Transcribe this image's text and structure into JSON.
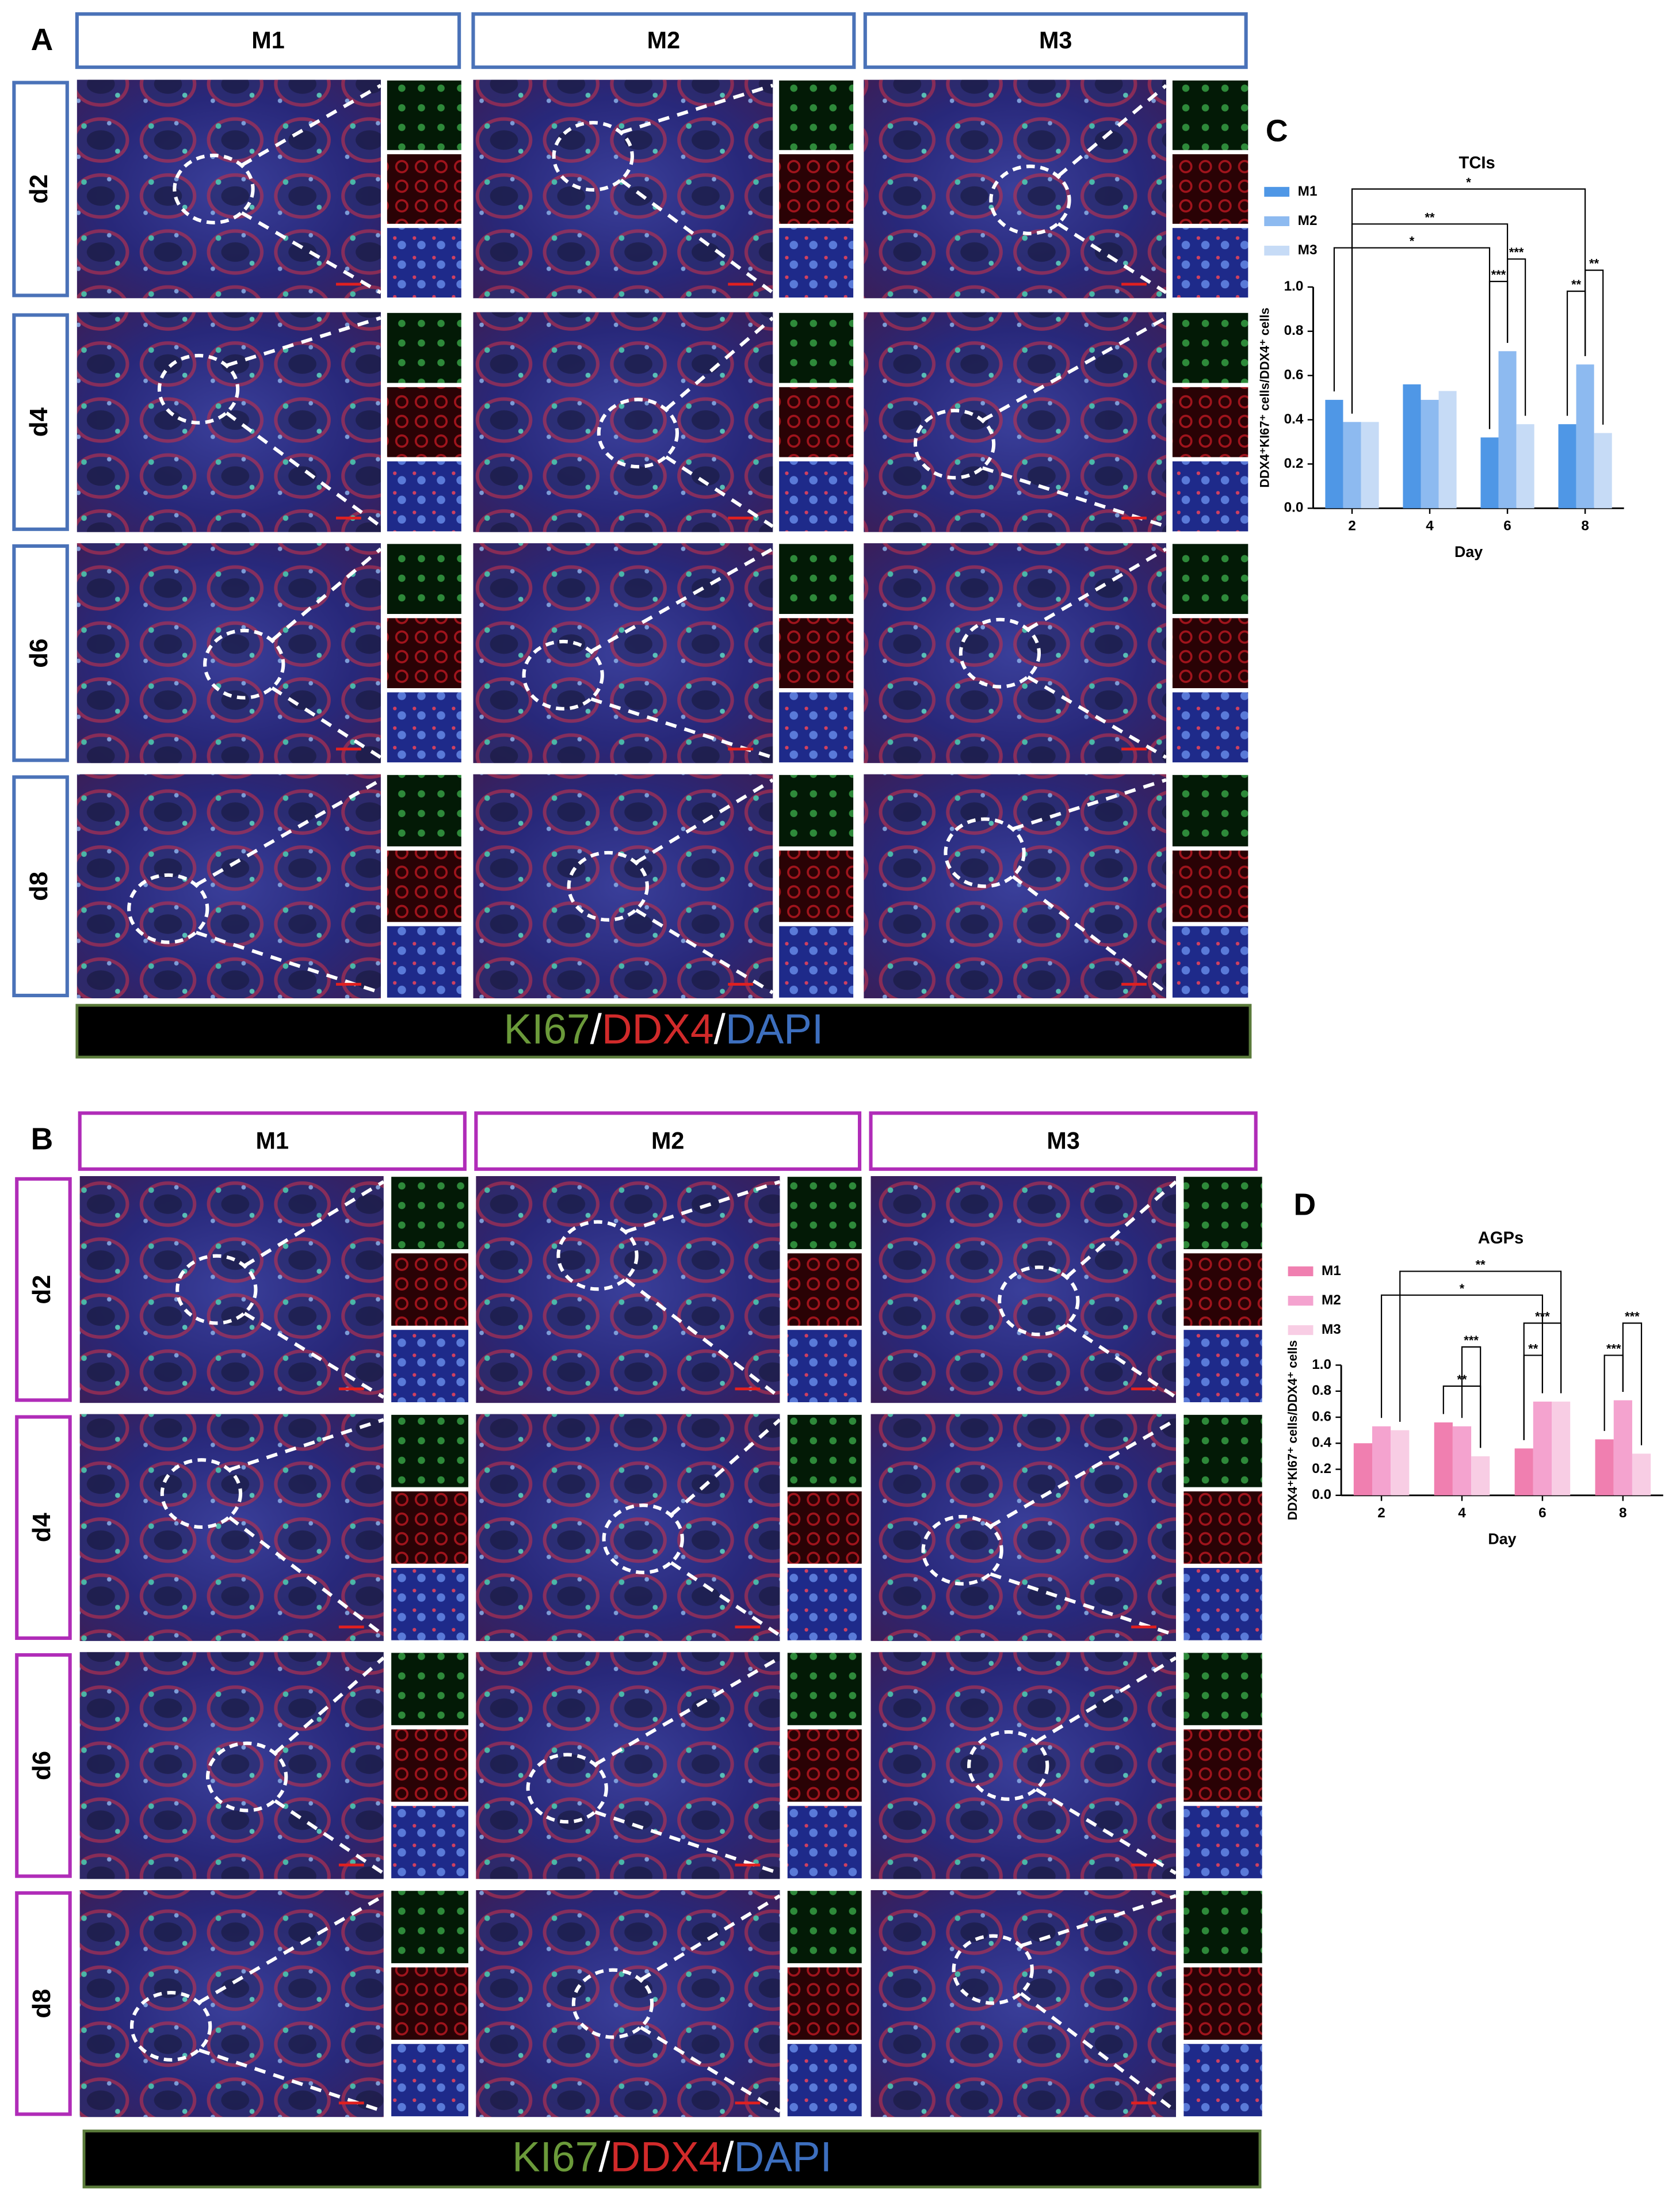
{
  "panels": [
    {
      "label": "A",
      "columns": [
        "M1",
        "M2",
        "M3"
      ],
      "rows": [
        "d2",
        "d4",
        "d6",
        "d8"
      ],
      "stain": [
        "KI67",
        "/",
        "DDX4",
        "/",
        "DAPI"
      ]
    },
    {
      "label": "B",
      "columns": [
        "M1",
        "M2",
        "M3"
      ],
      "rows": [
        "d2",
        "d4",
        "d6",
        "d8"
      ],
      "stain": [
        "KI67",
        "/",
        "DDX4",
        "/",
        "DAPI"
      ]
    }
  ],
  "chart_data": [
    {
      "type": "bar",
      "label": "C",
      "title": "TCIs",
      "x_label": "Day",
      "y_label": "DDX4⁺KI67⁺ cells/DDX4⁺ cells",
      "categories": [
        "2",
        "4",
        "6",
        "8"
      ],
      "series": [
        {
          "name": "M1",
          "color": "#4f97e6",
          "values": [
            0.49,
            0.56,
            0.32,
            0.38
          ]
        },
        {
          "name": "M2",
          "color": "#8dbaf0",
          "values": [
            0.39,
            0.49,
            0.71,
            0.65
          ]
        },
        {
          "name": "M3",
          "color": "#c6dbf6",
          "values": [
            0.39,
            0.53,
            0.38,
            0.34
          ]
        }
      ],
      "ylim": [
        0,
        1.0
      ],
      "yticks": [
        {
          "value": 0,
          "label": "0.0"
        },
        0.2,
        0.4,
        0.6,
        0.8,
        {
          "value": 1.0,
          "label": "1.0"
        }
      ],
      "annotations": [
        "*",
        "**",
        "*",
        "***",
        "***",
        "**",
        "**"
      ]
    },
    {
      "type": "bar",
      "label": "D",
      "title": "AGPs",
      "x_label": "Day",
      "y_label": "DDX4⁺KI67⁺ cells/DDX4⁺ cells",
      "categories": [
        "2",
        "4",
        "6",
        "8"
      ],
      "series": [
        {
          "name": "M1",
          "color": "#f07fb0",
          "values": [
            0.4,
            0.56,
            0.36,
            0.43
          ]
        },
        {
          "name": "M2",
          "color": "#f4a3cf",
          "values": [
            0.53,
            0.53,
            0.72,
            0.73
          ]
        },
        {
          "name": "M3",
          "color": "#f8cde4",
          "values": [
            0.5,
            0.3,
            0.72,
            0.32
          ]
        }
      ],
      "ylim": [
        0,
        1.0
      ],
      "yticks": [
        {
          "value": 0,
          "label": "0.0"
        },
        0.2,
        0.4,
        0.6,
        0.8,
        {
          "value": 1.0,
          "label": "1.0"
        }
      ],
      "annotations": [
        "**",
        "*",
        "***",
        "**",
        "***",
        "**",
        "***",
        "***"
      ]
    }
  ]
}
